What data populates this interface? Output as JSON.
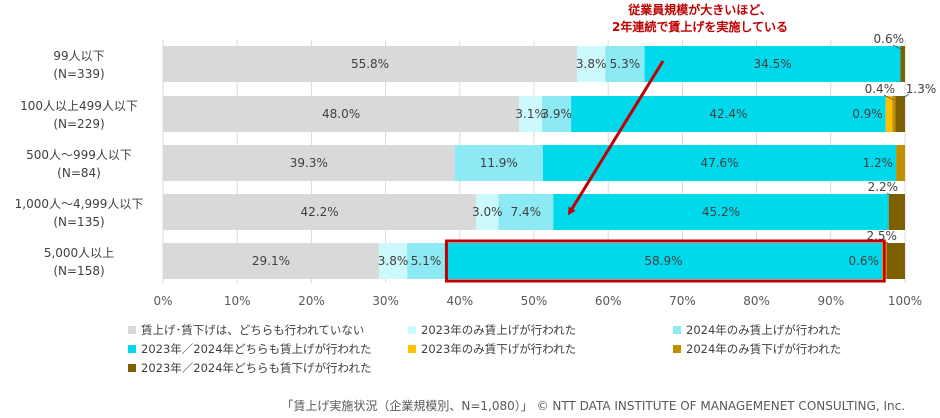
{
  "chart_data": {
    "type": "bar",
    "orientation": "horizontal",
    "stacked": "percent",
    "categories": [
      {
        "label": "99人以下",
        "n": "(N=339)"
      },
      {
        "label": "100人以上499人以下",
        "n": "(N=229)"
      },
      {
        "label": "500人～999人以下",
        "n": "(N=84)"
      },
      {
        "label": "1,000人～4,999人以下",
        "n": "(N=135)"
      },
      {
        "label": "5,000人以上",
        "n": "(N=158)"
      }
    ],
    "series": [
      {
        "name": "賃上げ･賃下げは、どちらも行われていない",
        "color": "#d9d9d9",
        "values": [
          55.8,
          48.0,
          39.3,
          42.2,
          29.1
        ]
      },
      {
        "name": "2023年のみ賃上げが行われた",
        "color": "#ccfafc",
        "values": [
          3.8,
          3.1,
          0,
          3.0,
          3.8
        ]
      },
      {
        "name": "2024年のみ賃上げが行われた",
        "color": "#8de9f4",
        "values": [
          5.3,
          3.9,
          11.9,
          7.4,
          5.1
        ]
      },
      {
        "name": "2023年／2024年どちらも賃上げが行われた",
        "color": "#00d9ec",
        "values": [
          34.5,
          42.4,
          47.6,
          45.2,
          58.9
        ]
      },
      {
        "name": "2023年のみ賃下げが行われた",
        "color": "#ffc000",
        "values": [
          0,
          0.9,
          0,
          0,
          0.6
        ]
      },
      {
        "name": "2024年のみ賃下げが行われた",
        "color": "#bf9000",
        "values": [
          0,
          0.4,
          1.2,
          0,
          0
        ]
      },
      {
        "name": "2023年／2024年どちらも賃下げが行われた",
        "color": "#7f6000",
        "values": [
          0.6,
          1.3,
          0,
          2.2,
          2.5
        ]
      }
    ],
    "data_labels": [
      [
        {
          "s": 0,
          "text": "55.8%"
        },
        {
          "s": 1,
          "text": "3.8%"
        },
        {
          "s": 2,
          "text": "5.3%"
        },
        {
          "s": 3,
          "text": "34.5%"
        },
        {
          "s": 6,
          "text": "0.6%",
          "callout": true
        }
      ],
      [
        {
          "s": 0,
          "text": "48.0%"
        },
        {
          "s": 1,
          "text": "3.1%"
        },
        {
          "s": 2,
          "text": "3.9%"
        },
        {
          "s": 3,
          "text": "42.4%"
        },
        {
          "s": 4,
          "text": "0.9%",
          "inside_left": true
        },
        {
          "s": 5,
          "text": "0.4%",
          "callout": true
        },
        {
          "s": 6,
          "text": "1.3%",
          "callout_right": true
        }
      ],
      [
        {
          "s": 0,
          "text": "39.3%"
        },
        {
          "s": 2,
          "text": "11.9%"
        },
        {
          "s": 3,
          "text": "47.6%"
        },
        {
          "s": 5,
          "text": "1.2%",
          "inside_left": true
        }
      ],
      [
        {
          "s": 0,
          "text": "42.2%"
        },
        {
          "s": 1,
          "text": "3.0%"
        },
        {
          "s": 2,
          "text": "7.4%"
        },
        {
          "s": 3,
          "text": "45.2%"
        },
        {
          "s": 6,
          "text": "2.2%",
          "callout": true
        }
      ],
      [
        {
          "s": 0,
          "text": "29.1%"
        },
        {
          "s": 1,
          "text": "3.8%"
        },
        {
          "s": 2,
          "text": "5.1%"
        },
        {
          "s": 3,
          "text": "58.9%"
        },
        {
          "s": 4,
          "text": "0.6%",
          "inside_left": true
        },
        {
          "s": 6,
          "text": "2.5%",
          "callout": true
        }
      ]
    ],
    "x_ticks": [
      "0%",
      "10%",
      "20%",
      "30%",
      "40%",
      "50%",
      "60%",
      "70%",
      "80%",
      "90%",
      "100%"
    ],
    "xlim": [
      0,
      100
    ],
    "grid": true,
    "legend_position": "bottom",
    "annotation": {
      "line1": "従業員規模が大きいほど、",
      "line2": "2年連続で賃上げを実施している",
      "color": "#c00000"
    },
    "highlight_box": {
      "row": 4,
      "from": 38.2,
      "to": 97.2,
      "color": "#c00000"
    }
  },
  "caption": "「賃上げ実施状況（企業規模別、N=1,080）」 © NTT DATA INSTITUTE OF MANAGEMENET CONSULTING, Inc."
}
